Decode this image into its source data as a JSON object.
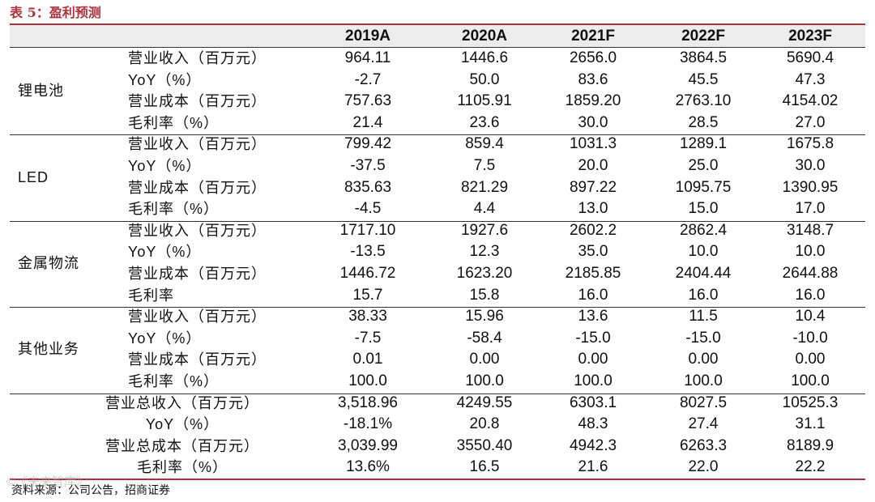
{
  "title": "表 5：盈利预测",
  "columns": [
    "2019A",
    "2020A",
    "2021F",
    "2022F",
    "2023F"
  ],
  "groups": [
    {
      "name": "锂电池",
      "rows": [
        {
          "metric": "营业收入（百万元）",
          "values": [
            "964.11",
            "1446.6",
            "2656.0",
            "3864.5",
            "5690.4"
          ]
        },
        {
          "metric": "YoY（%）",
          "values": [
            "-2.7",
            "50.0",
            "83.6",
            "45.5",
            "47.3"
          ]
        },
        {
          "metric": "营业成本（百万元）",
          "values": [
            "757.63",
            "1105.91",
            "1859.20",
            "2763.10",
            "4154.02"
          ]
        },
        {
          "metric": "毛利率（%）",
          "values": [
            "21.4",
            "23.6",
            "30.0",
            "28.5",
            "27.0"
          ]
        }
      ]
    },
    {
      "name": "LED",
      "rows": [
        {
          "metric": "营业收入（百万元）",
          "values": [
            "799.42",
            "859.4",
            "1031.3",
            "1289.1",
            "1675.8"
          ]
        },
        {
          "metric": "YoY（%）",
          "values": [
            "-37.5",
            "7.5",
            "20.0",
            "25.0",
            "30.0"
          ]
        },
        {
          "metric": "营业成本（百万元）",
          "values": [
            "835.63",
            "821.29",
            "897.22",
            "1095.75",
            "1390.95"
          ]
        },
        {
          "metric": "毛利率（%）",
          "values": [
            "-4.5",
            "4.4",
            "13.0",
            "15.0",
            "17.0"
          ]
        }
      ]
    },
    {
      "name": "金属物流",
      "rows": [
        {
          "metric": "营业收入（百万元）",
          "values": [
            "1717.10",
            "1927.6",
            "2602.2",
            "2862.4",
            "3148.7"
          ]
        },
        {
          "metric": "YoY（%）",
          "values": [
            "-13.5",
            "12.3",
            "35.0",
            "10.0",
            "10.0"
          ]
        },
        {
          "metric": "营业成本（百万元）",
          "values": [
            "1446.72",
            "1623.20",
            "2185.85",
            "2404.44",
            "2644.88"
          ]
        },
        {
          "metric": "毛利率",
          "values": [
            "15.7",
            "15.8",
            "16.0",
            "16.0",
            "16.0"
          ]
        }
      ]
    },
    {
      "name": "其他业务",
      "rows": [
        {
          "metric": "营业收入（百万元）",
          "values": [
            "38.33",
            "15.96",
            "13.6",
            "11.5",
            "10.4"
          ]
        },
        {
          "metric": "YoY（%）",
          "values": [
            "-7.5",
            "-58.4",
            "-15.0",
            "-15.0",
            "-10.0"
          ]
        },
        {
          "metric": "营业成本（百万元）",
          "values": [
            "0.01",
            "0.00",
            "0.00",
            "0.00",
            "0.00"
          ]
        },
        {
          "metric": "毛利率（%）",
          "values": [
            "100.0",
            "100.0",
            "100.0",
            "100.0",
            "100.0"
          ]
        }
      ]
    },
    {
      "name": "",
      "total": true,
      "rows": [
        {
          "metric": "营业总收入（百万元）",
          "values": [
            "3,518.96",
            "4249.55",
            "6303.1",
            "8027.5",
            "10525.3"
          ]
        },
        {
          "metric": "YoY（%）",
          "values": [
            "-18.1%",
            "20.8",
            "48.3",
            "27.4",
            "31.1"
          ]
        },
        {
          "metric": "营业总成本（百万元）",
          "values": [
            "3,039.99",
            "3550.40",
            "4942.3",
            "6263.3",
            "8189.9"
          ]
        },
        {
          "metric": "毛利率（%）",
          "values": [
            "13.6%",
            "16.5",
            "21.6",
            "22.0",
            "22.2"
          ]
        }
      ]
    }
  ],
  "source": "资料来源：公司公告，招商证券",
  "watermark": "©《未来智库》",
  "colors": {
    "accent": "#b0313a",
    "header_bg": "#ececec"
  }
}
